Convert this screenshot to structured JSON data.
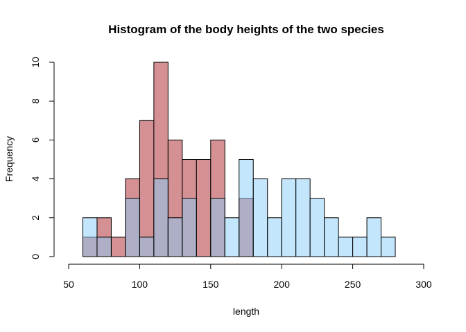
{
  "chart_data": {
    "type": "bar",
    "title": "Histogram of the body heights of the two species",
    "xlabel": "length",
    "ylabel": "Frequency",
    "xlim": [
      50,
      300
    ],
    "ylim": [
      0,
      10
    ],
    "x_ticks": [
      50,
      100,
      150,
      200,
      250,
      300
    ],
    "y_ticks": [
      0,
      2,
      4,
      6,
      8,
      10
    ],
    "bin_width": 10,
    "grid": false,
    "series": [
      {
        "color": "#cd7d7f",
        "opacity": 0.85,
        "bins": [
          {
            "x0": 60,
            "count": 1
          },
          {
            "x0": 70,
            "count": 2
          },
          {
            "x0": 80,
            "count": 1
          },
          {
            "x0": 90,
            "count": 4
          },
          {
            "x0": 100,
            "count": 7
          },
          {
            "x0": 110,
            "count": 10
          },
          {
            "x0": 120,
            "count": 6
          },
          {
            "x0": 130,
            "count": 5
          },
          {
            "x0": 140,
            "count": 5
          },
          {
            "x0": 150,
            "count": 6
          },
          {
            "x0": 170,
            "count": 3
          }
        ]
      },
      {
        "color": "#87cefa",
        "opacity": 0.5,
        "bins": [
          {
            "x0": 60,
            "count": 2
          },
          {
            "x0": 70,
            "count": 1
          },
          {
            "x0": 90,
            "count": 3
          },
          {
            "x0": 100,
            "count": 1
          },
          {
            "x0": 110,
            "count": 4
          },
          {
            "x0": 120,
            "count": 2
          },
          {
            "x0": 130,
            "count": 3
          },
          {
            "x0": 150,
            "count": 3
          },
          {
            "x0": 160,
            "count": 2
          },
          {
            "x0": 170,
            "count": 5
          },
          {
            "x0": 180,
            "count": 4
          },
          {
            "x0": 190,
            "count": 2
          },
          {
            "x0": 200,
            "count": 4
          },
          {
            "x0": 210,
            "count": 4
          },
          {
            "x0": 220,
            "count": 3
          },
          {
            "x0": 230,
            "count": 2
          },
          {
            "x0": 240,
            "count": 1
          },
          {
            "x0": 250,
            "count": 1
          },
          {
            "x0": 260,
            "count": 2
          },
          {
            "x0": 270,
            "count": 1
          }
        ]
      }
    ]
  }
}
